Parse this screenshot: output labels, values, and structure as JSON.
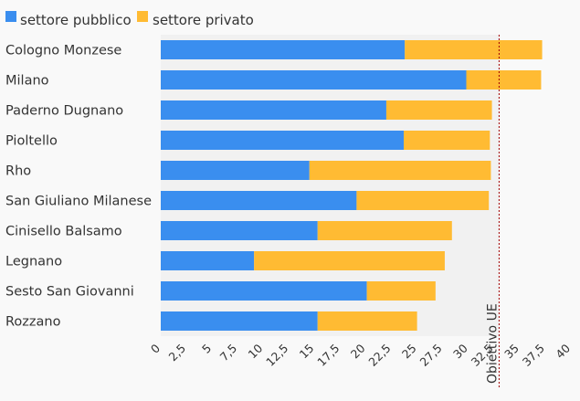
{
  "colors": {
    "pubblico": "#3a8eef",
    "privato": "#ffbb33",
    "target": "#a00000",
    "plot_bg": "#f1f1f1",
    "page_bg": "#f9f9f9"
  },
  "chart_data": {
    "type": "bar",
    "orientation": "horizontal",
    "stacked": true,
    "categories": [
      "Cologno Monzese",
      "Milano",
      "Paderno Dugnano",
      "Pioltello",
      "Rho",
      "San Giuliano Milanese",
      "Cinisello Balsamo",
      "Legnano",
      "Sesto San Giovanni",
      "Rozzano"
    ],
    "series": [
      {
        "name": "settore pubblico",
        "values": [
          23.8,
          29.8,
          22.0,
          23.7,
          14.5,
          19.1,
          15.3,
          9.1,
          20.1,
          15.3
        ]
      },
      {
        "name": "settore privato",
        "values": [
          13.4,
          7.3,
          10.3,
          8.4,
          17.7,
          12.9,
          13.1,
          18.6,
          6.7,
          9.7
        ]
      }
    ],
    "xlim": [
      0,
      40
    ],
    "xticks": [
      "0",
      "2,5",
      "5",
      "7,5",
      "10",
      "12,5",
      "15",
      "17,5",
      "20",
      "22,5",
      "25",
      "27,5",
      "30",
      "32,5",
      "35",
      "37,5",
      "40"
    ],
    "reference_line": {
      "value": 33,
      "label": "Obiettivo UE"
    },
    "plot_range_end": 33,
    "legend_position": "top-left",
    "grid": false
  }
}
